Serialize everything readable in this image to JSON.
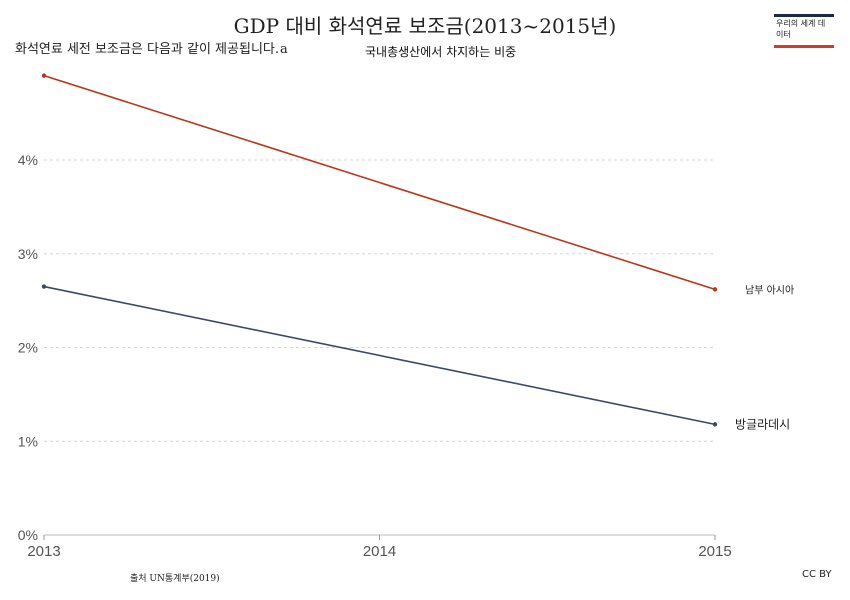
{
  "header": {
    "title": "GDP 대비 화석연료 보조금(2013~2015년)",
    "subtitle": "화석연료 세전 보조금은 다음과 같이 제공됩니다.",
    "subtitle_marker": "a",
    "annotation": "국내총생산에서 차지하는 비중"
  },
  "logo": {
    "text": "우리의 세계 데이터"
  },
  "footer": {
    "source": "출처 UN통계부(2019)",
    "license": "CC BY"
  },
  "chart_data": {
    "type": "line",
    "x": [
      2013,
      2015
    ],
    "xticks": [
      "2013",
      "2014",
      "2015"
    ],
    "yticks": [
      "0%",
      "1%",
      "2%",
      "3%",
      "4%"
    ],
    "ylim": [
      0,
      4.9
    ],
    "grid": "horizontal dashed",
    "legend": "end-of-line labels",
    "series": [
      {
        "name": "남부 아시아",
        "values": [
          4.9,
          2.62
        ],
        "color": "#b5391b"
      },
      {
        "name": "방글라데시",
        "values": [
          2.65,
          1.18
        ],
        "color": "#3a4a66"
      }
    ]
  }
}
